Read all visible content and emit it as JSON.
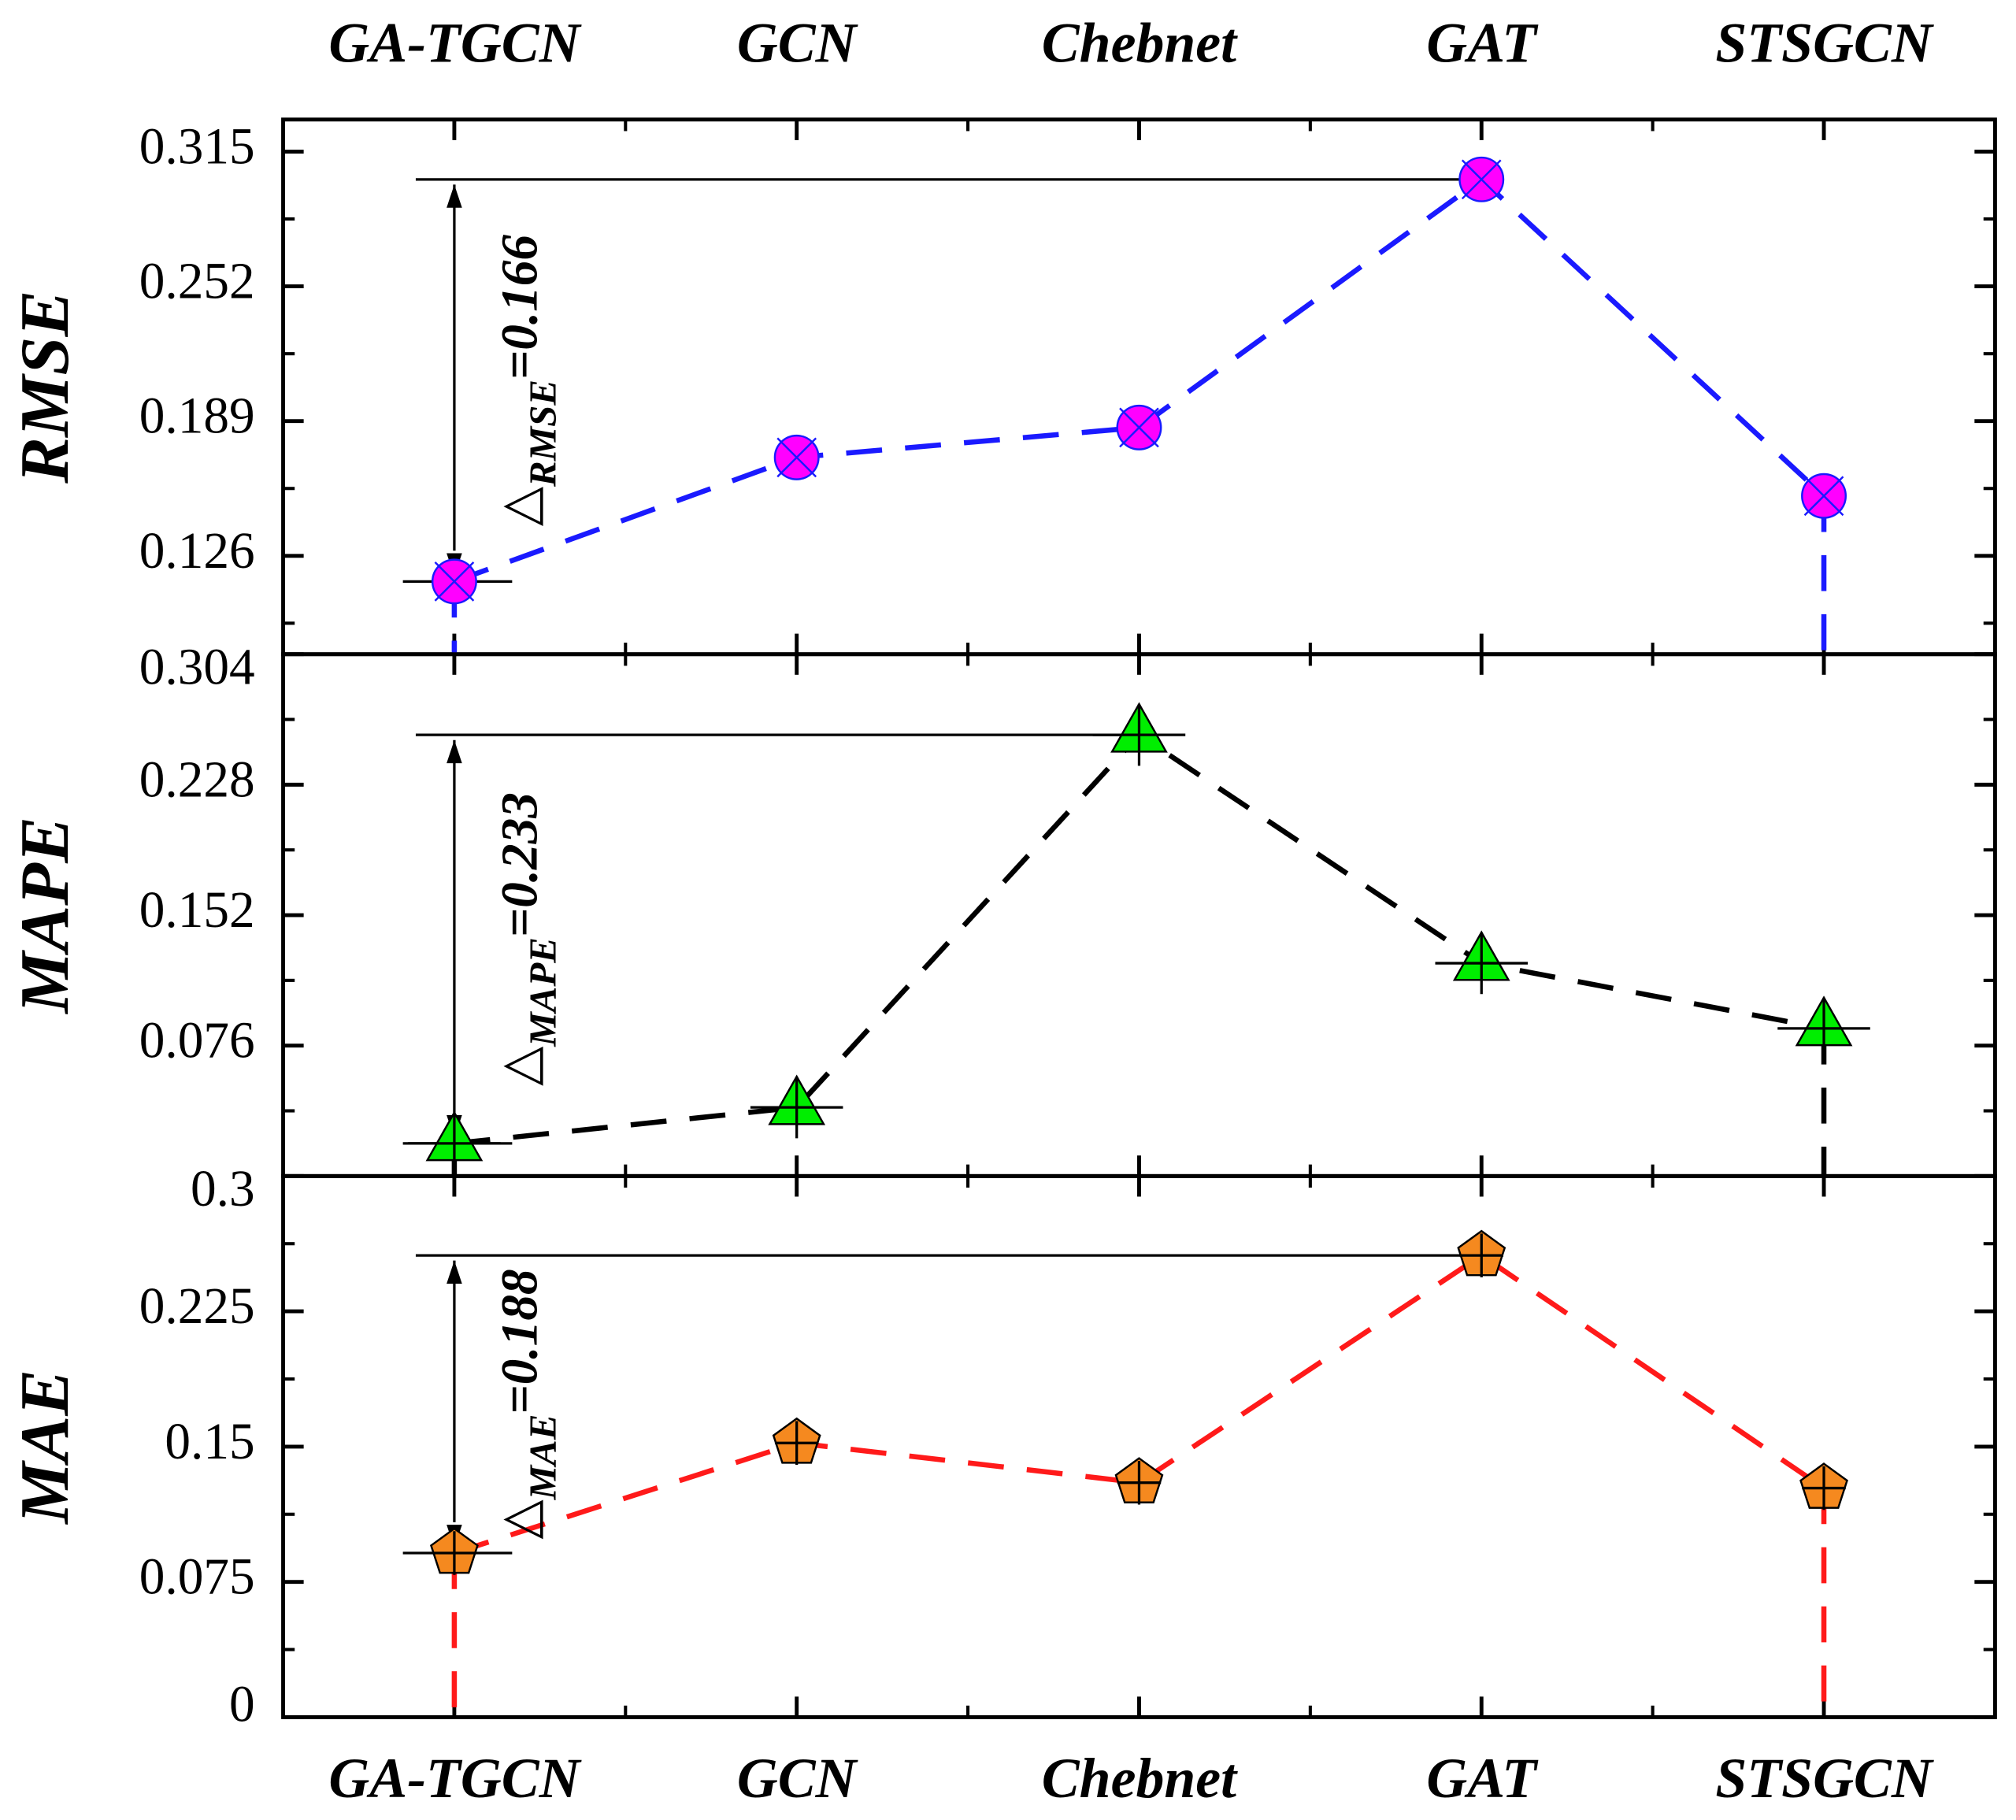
{
  "chart_data": [
    {
      "type": "line",
      "ylabel": "RMSE",
      "categories": [
        "GA-TGCN",
        "GCN",
        "Chebnet",
        "GAT",
        "STSGCN"
      ],
      "series": [
        {
          "color": "#1a1aff",
          "marker": "circle",
          "marker_color": "#ff00ff",
          "values": [
            0.114,
            0.172,
            0.186,
            0.302,
            0.154
          ]
        }
      ],
      "ylim": [
        0.08,
        0.33
      ],
      "yticks": [
        0.126,
        0.189,
        0.252,
        0.315
      ],
      "annotation": "△",
      "annotation_sub": "RMSE",
      "annotation_value": "=0.166"
    },
    {
      "type": "line",
      "ylabel": "MAPE",
      "categories": [
        "GA-TGCN",
        "GCN",
        "Chebnet",
        "GAT",
        "STSGCN"
      ],
      "series": [
        {
          "color": "#000000",
          "marker": "triangle",
          "marker_color": "#00ee00",
          "values": [
            0.019,
            0.04,
            0.257,
            0.124,
            0.086
          ]
        }
      ],
      "ylim": [
        0,
        0.304
      ],
      "yticks": [
        0.076,
        0.152,
        0.228,
        0.304
      ],
      "annotation": "△",
      "annotation_sub": "MAPE",
      "annotation_value": "=0.233"
    },
    {
      "type": "line",
      "ylabel": "MAE",
      "categories": [
        "GA-TGCN",
        "GCN",
        "Chebnet",
        "GAT",
        "STSGCN"
      ],
      "series": [
        {
          "color": "#ff1a1a",
          "marker": "pentagon",
          "marker_color": "#f5891f",
          "values": [
            0.091,
            0.152,
            0.13,
            0.256,
            0.127
          ]
        }
      ],
      "ylim": [
        0,
        0.3
      ],
      "yticks": [
        0,
        0.075,
        0.15,
        0.225,
        0.3
      ],
      "annotation": "△",
      "annotation_sub": "MAE",
      "annotation_value": "=0.188"
    }
  ]
}
